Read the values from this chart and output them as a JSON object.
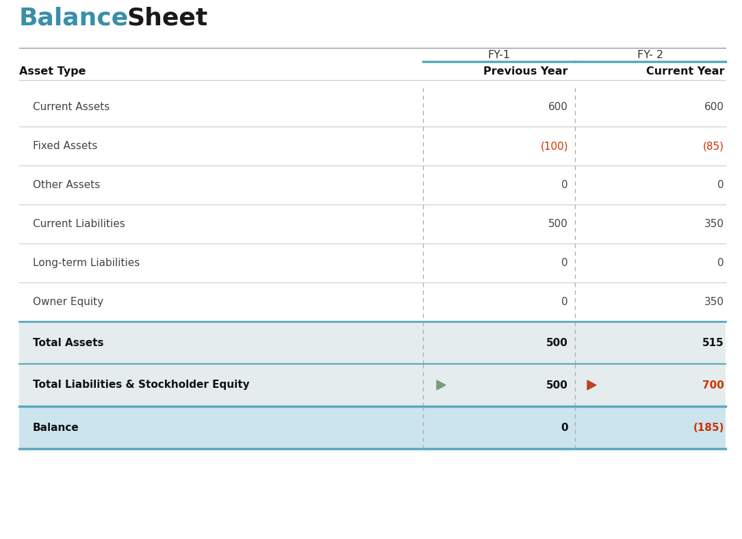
{
  "title_balance": "Balance",
  "title_sheet": "Sheet",
  "title_color_balance": "#3a8fa8",
  "title_color_sheet": "#1a1a1a",
  "title_fontsize": 26,
  "bg_color": "#ffffff",
  "header_line_color": "#888888",
  "col_divider_color": "#aaaaaa",
  "teal_line_color": "#5ba8be",
  "row_divider_color": "#cccccc",
  "total_row_bg": "#e4ecee",
  "balance_row_bg": "#cce4ee",
  "fy1_label": "FY-1",
  "fy2_label": "FY- 2",
  "col1_header": "Asset Type",
  "col2_header": "Previous Year",
  "col3_header": "Current Year",
  "rows": [
    {
      "label": "Current Assets",
      "val1": "600",
      "val2": "600",
      "neg1": false,
      "neg2": false
    },
    {
      "label": "Fixed Assets",
      "val1": "(100)",
      "val2": "(85)",
      "neg1": true,
      "neg2": true
    },
    {
      "label": "Other Assets",
      "val1": "0",
      "val2": "0",
      "neg1": false,
      "neg2": false
    },
    {
      "label": "Current Liabilities",
      "val1": "500",
      "val2": "350",
      "neg1": false,
      "neg2": false
    },
    {
      "label": "Long-term Liabilities",
      "val1": "0",
      "val2": "0",
      "neg1": false,
      "neg2": false
    },
    {
      "label": "Owner Equity",
      "val1": "0",
      "val2": "350",
      "neg1": false,
      "neg2": false
    }
  ],
  "total_rows": [
    {
      "label": "Total Assets",
      "val1": "500",
      "val2": "515",
      "neg1": false,
      "neg2": false,
      "flag1": false,
      "flag2": false,
      "bg": "total"
    },
    {
      "label": "Total Liabilities & Stockholder Equity",
      "val1": "500",
      "val2": "700",
      "neg1": false,
      "neg2": true,
      "flag1": true,
      "flag2": true,
      "bg": "total"
    },
    {
      "label": "Balance",
      "val1": "0",
      "val2": "(185)",
      "neg1": false,
      "neg2": true,
      "flag1": false,
      "flag2": false,
      "bg": "balance"
    }
  ],
  "neg_color": "#cc3300",
  "normal_color": "#444444",
  "bold_color": "#111111",
  "flag_color_1": "#7a9a7a",
  "flag_color_2": "#bb4422"
}
